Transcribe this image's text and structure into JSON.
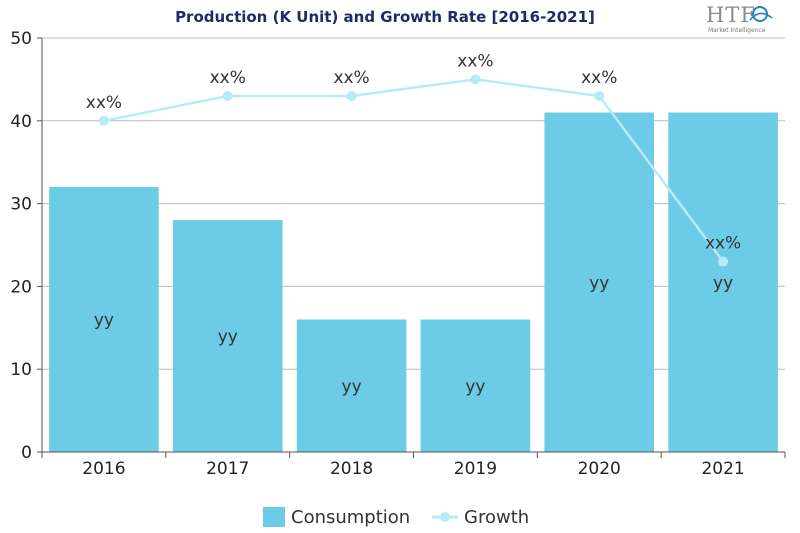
{
  "chart_data": {
    "type": "bar",
    "title": "Production (K Unit) and Growth Rate [2016-2021]",
    "categories": [
      "2016",
      "2017",
      "2018",
      "2019",
      "2020",
      "2021"
    ],
    "ylim": [
      0,
      50
    ],
    "yticks": [
      "0",
      "10",
      "20",
      "30",
      "40",
      "50"
    ],
    "grid": true,
    "legend_position": "bottom",
    "series": [
      {
        "name": "Consumption",
        "type": "bar",
        "color": "#6ccbe6",
        "values": [
          32,
          28,
          16,
          16,
          41,
          41
        ],
        "labels": [
          "yy",
          "yy",
          "yy",
          "yy",
          "yy",
          "yy"
        ]
      },
      {
        "name": "Growth",
        "type": "line",
        "color": "#b7ecf6",
        "values": [
          40,
          43,
          43,
          45,
          43,
          23
        ],
        "labels": [
          "xx%",
          "xx%",
          "xx%",
          "xx%",
          "xx%",
          "xx%"
        ]
      }
    ]
  },
  "logo": {
    "text": "HTF",
    "subtitle": "Market Intelligence"
  }
}
